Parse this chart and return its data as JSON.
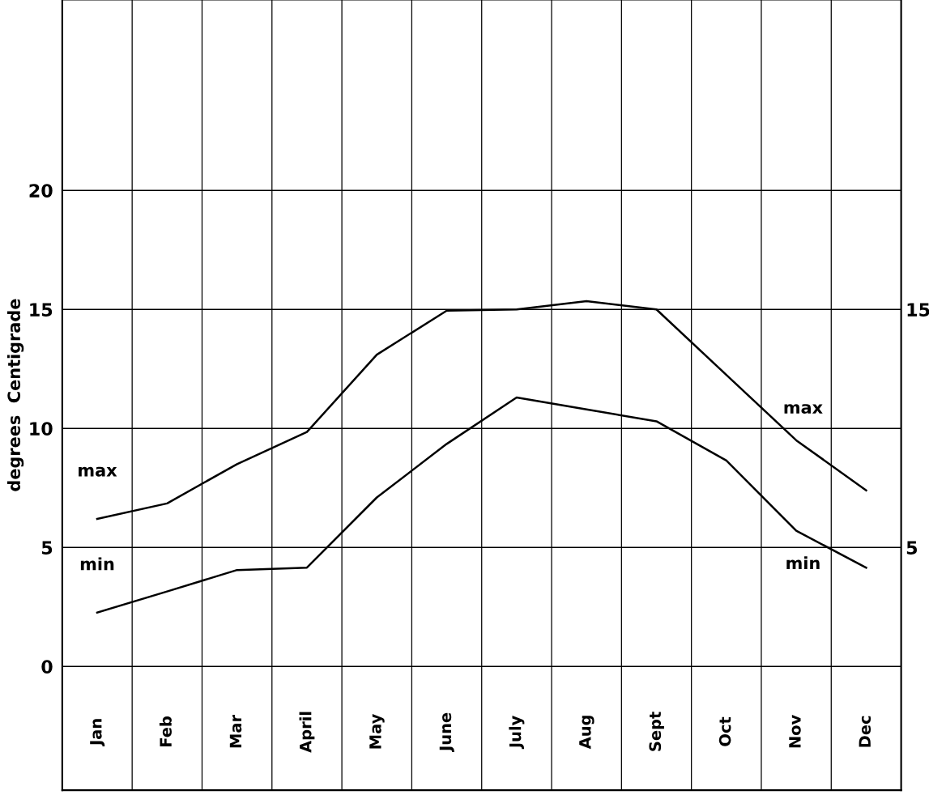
{
  "chart_data": {
    "type": "line",
    "ylabel": "degrees  Centigrade",
    "categories": [
      "Jan",
      "Feb",
      "Mar",
      "April",
      "May",
      "June",
      "July",
      "Aug",
      "Sept",
      "Oct",
      "Nov",
      "Dec"
    ],
    "series": [
      {
        "name": "max",
        "color": "#000000",
        "values": [
          6.2,
          6.85,
          8.5,
          9.85,
          13.1,
          14.95,
          15.0,
          15.35,
          15.0,
          12.25,
          9.5,
          7.4
        ]
      },
      {
        "name": "min",
        "color": "#000000",
        "values": [
          2.26,
          3.15,
          4.05,
          4.15,
          7.1,
          9.35,
          11.3,
          10.8,
          10.3,
          8.65,
          5.7,
          4.15
        ]
      }
    ],
    "ylim": [
      -5.2,
      28
    ],
    "yticks": [
      0,
      5,
      10,
      15,
      20
    ],
    "y2lim": [
      -5.2,
      28
    ],
    "y2ticks": [
      5,
      15
    ],
    "grid": true,
    "marker": "none",
    "line_style": "solid",
    "annotations": [
      "max",
      "min"
    ]
  }
}
